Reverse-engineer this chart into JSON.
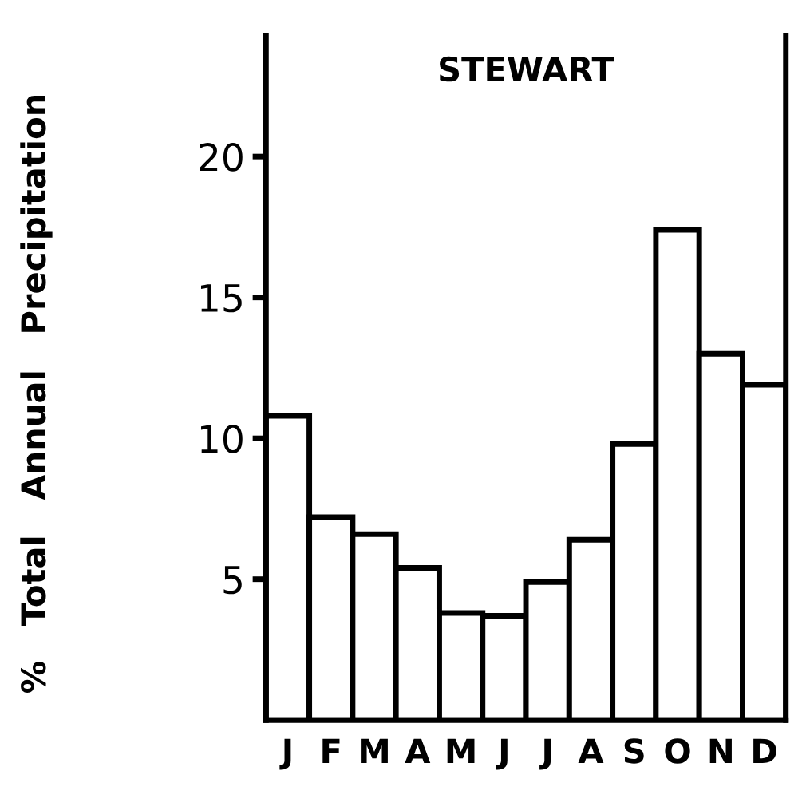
{
  "chart_data": {
    "type": "bar",
    "title": "STEWART",
    "ylabel": "%   Total   Annual   Precipitation",
    "categories": [
      "J",
      "F",
      "M",
      "A",
      "M",
      "J",
      "J",
      "A",
      "S",
      "O",
      "N",
      "D"
    ],
    "values": [
      10.8,
      7.2,
      6.6,
      5.4,
      3.8,
      3.7,
      4.9,
      6.4,
      9.8,
      17.4,
      13.0,
      11.9
    ],
    "color": "#ffffff",
    "ylim": [
      0,
      24.3
    ],
    "yticks": [
      5,
      10,
      15,
      20
    ],
    "grid": false
  }
}
